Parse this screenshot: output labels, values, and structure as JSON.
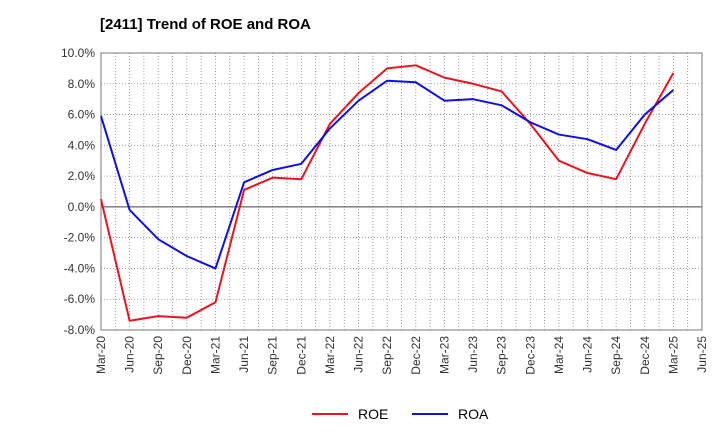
{
  "chart_data": {
    "type": "line",
    "title": "[2411]  Trend of ROE and ROA",
    "xlabel": "",
    "ylabel": "",
    "categories": [
      "Mar-20",
      "Jun-20",
      "Sep-20",
      "Dec-20",
      "Mar-21",
      "Jun-21",
      "Sep-21",
      "Dec-21",
      "Mar-22",
      "Jun-22",
      "Sep-22",
      "Dec-22",
      "Mar-23",
      "Jun-23",
      "Sep-23",
      "Dec-23",
      "Mar-24",
      "Jun-24",
      "Sep-24",
      "Dec-24",
      "Mar-25",
      "Jun-25"
    ],
    "ylim": [
      -8.0,
      10.0
    ],
    "yticks": [
      "10.0%",
      "8.0%",
      "6.0%",
      "4.0%",
      "2.0%",
      "0.0%",
      "-2.0%",
      "-4.0%",
      "-6.0%",
      "-8.0%"
    ],
    "ytick_values": [
      10,
      8,
      6,
      4,
      2,
      0,
      -2,
      -4,
      -6,
      -8
    ],
    "grid": true,
    "legend_position": "bottom-center",
    "series": [
      {
        "name": "ROE",
        "color": "#e8141e",
        "values": [
          0.5,
          -7.4,
          -7.1,
          -7.2,
          -6.2,
          1.1,
          1.9,
          1.8,
          5.4,
          7.4,
          9.0,
          9.2,
          8.4,
          8.0,
          7.5,
          5.4,
          3.0,
          2.2,
          1.8,
          5.4,
          8.7,
          null
        ]
      },
      {
        "name": "ROA",
        "color": "#1010e0",
        "values": [
          5.9,
          -0.2,
          -2.1,
          -3.2,
          -4.0,
          1.6,
          2.4,
          2.8,
          5.1,
          6.9,
          8.2,
          8.1,
          6.9,
          7.0,
          6.6,
          5.5,
          4.7,
          4.4,
          3.7,
          6.0,
          7.6,
          null
        ]
      }
    ]
  }
}
